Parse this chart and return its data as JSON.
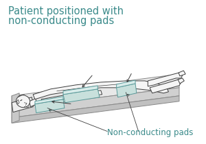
{
  "title_line1": "Patient positioned with",
  "title_line2": "non-conducting pads",
  "label": "Non-conducting pads",
  "title_color": "#3a8a8a",
  "label_color": "#3a8a8a",
  "bg_color": "#ffffff",
  "title_fontsize": 10.5,
  "label_fontsize": 8.5,
  "fig_width": 3.0,
  "fig_height": 2.1,
  "dpi": 100,
  "pad_color": "#c8e0dc",
  "pad_edge_color": "#5a9a9a",
  "line_color": "#3c3c3c",
  "table_top_color": "#e8e8e8",
  "table_side_color": "#d0d0d0",
  "table_bot_color": "#c0c0c0",
  "body_fill": "#f5f5f5",
  "table_edge": "#888888"
}
